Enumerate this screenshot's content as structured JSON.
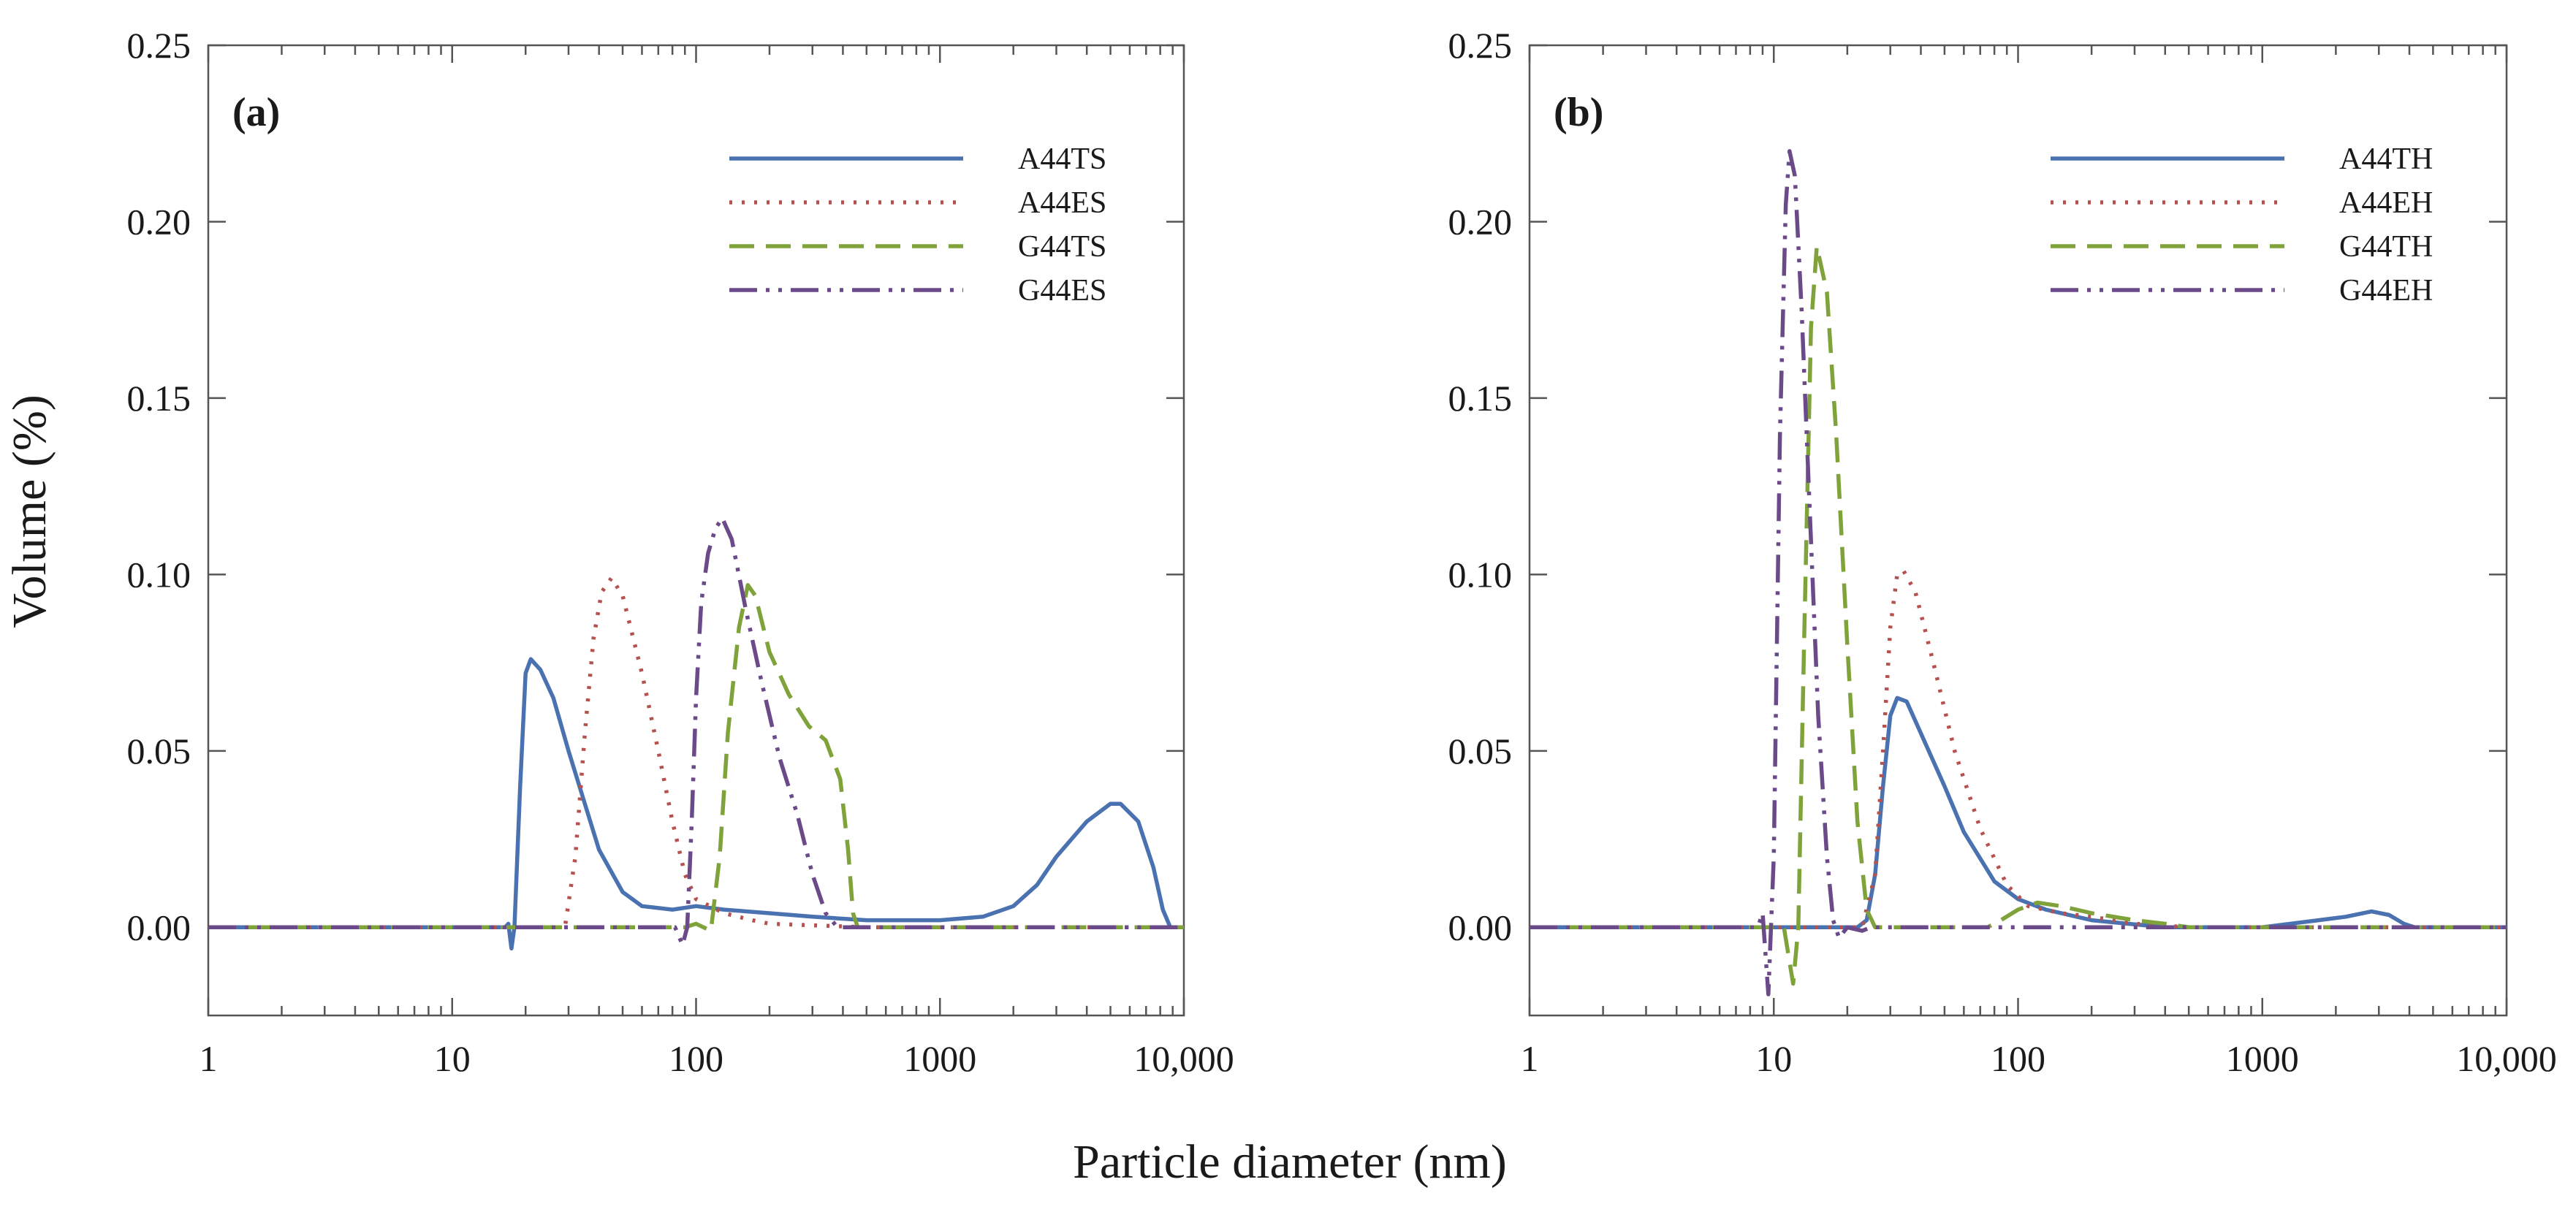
{
  "figure": {
    "xlabel": "Particle diameter (nm)",
    "ylabel": "Volume (%)"
  },
  "chart_data": [
    {
      "type": "line",
      "panel": "(a)",
      "xscale": "log",
      "xlim": [
        1,
        10000
      ],
      "ylim": [
        -0.025,
        0.25
      ],
      "x_ticks": [
        1,
        10,
        100,
        1000,
        10000
      ],
      "x_tick_labels": [
        "1",
        "10",
        "100",
        "1000",
        "10,000"
      ],
      "y_ticks": [
        0,
        0.05,
        0.1,
        0.15,
        0.2,
        0.25
      ],
      "y_tick_labels": [
        "0.00",
        "0.05",
        "0.10",
        "0.15",
        "0.20",
        "0.25"
      ],
      "legend_position": "top-right",
      "series": [
        {
          "name": "A44TS",
          "color": "#4a72b0",
          "dash": "solid",
          "points": [
            [
              1,
              0
            ],
            [
              16.5,
              0
            ],
            [
              17,
              0.001
            ],
            [
              17.5,
              -0.006
            ],
            [
              18,
              0
            ],
            [
              19,
              0.04
            ],
            [
              20,
              0.072
            ],
            [
              21,
              0.076
            ],
            [
              23,
              0.073
            ],
            [
              26,
              0.065
            ],
            [
              30,
              0.05
            ],
            [
              35,
              0.035
            ],
            [
              40,
              0.022
            ],
            [
              50,
              0.01
            ],
            [
              60,
              0.006
            ],
            [
              80,
              0.005
            ],
            [
              100,
              0.006
            ],
            [
              130,
              0.005
            ],
            [
              200,
              0.004
            ],
            [
              300,
              0.003
            ],
            [
              500,
              0.002
            ],
            [
              1000,
              0.002
            ],
            [
              1500,
              0.003
            ],
            [
              2000,
              0.006
            ],
            [
              2500,
              0.012
            ],
            [
              3000,
              0.02
            ],
            [
              4000,
              0.03
            ],
            [
              5000,
              0.035
            ],
            [
              5500,
              0.035
            ],
            [
              6500,
              0.03
            ],
            [
              7500,
              0.017
            ],
            [
              8200,
              0.005
            ],
            [
              8800,
              0
            ],
            [
              10000,
              0
            ]
          ]
        },
        {
          "name": "A44ES",
          "color": "#b5524f",
          "dash": "dot",
          "points": [
            [
              1,
              0
            ],
            [
              29,
              0
            ],
            [
              32,
              0.02
            ],
            [
              35,
              0.055
            ],
            [
              38,
              0.082
            ],
            [
              41,
              0.095
            ],
            [
              45,
              0.099
            ],
            [
              50,
              0.094
            ],
            [
              60,
              0.072
            ],
            [
              70,
              0.05
            ],
            [
              80,
              0.03
            ],
            [
              90,
              0.015
            ],
            [
              100,
              0.008
            ],
            [
              130,
              0.004
            ],
            [
              170,
              0.002
            ],
            [
              200,
              0.001
            ],
            [
              500,
              0
            ],
            [
              10000,
              0
            ]
          ]
        },
        {
          "name": "G44TS",
          "color": "#7fa33a",
          "dash": "dash",
          "points": [
            [
              1,
              0
            ],
            [
              90,
              0
            ],
            [
              100,
              0.001
            ],
            [
              115,
              -0.001
            ],
            [
              125,
              0.02
            ],
            [
              135,
              0.055
            ],
            [
              150,
              0.085
            ],
            [
              163,
              0.097
            ],
            [
              175,
              0.094
            ],
            [
              200,
              0.078
            ],
            [
              240,
              0.066
            ],
            [
              290,
              0.057
            ],
            [
              340,
              0.053
            ],
            [
              390,
              0.042
            ],
            [
              420,
              0.022
            ],
            [
              440,
              0.004
            ],
            [
              460,
              0
            ],
            [
              10000,
              0
            ]
          ]
        },
        {
          "name": "G44ES",
          "color": "#6b4a8a",
          "dash": "dashdotdot",
          "points": [
            [
              1,
              0
            ],
            [
              82,
              0
            ],
            [
              88,
              -0.005
            ],
            [
              92,
              0
            ],
            [
              96,
              0.03
            ],
            [
              100,
              0.065
            ],
            [
              105,
              0.092
            ],
            [
              112,
              0.106
            ],
            [
              120,
              0.113
            ],
            [
              128,
              0.116
            ],
            [
              140,
              0.11
            ],
            [
              160,
              0.09
            ],
            [
              185,
              0.07
            ],
            [
              220,
              0.048
            ],
            [
              260,
              0.032
            ],
            [
              300,
              0.015
            ],
            [
              340,
              0.004
            ],
            [
              380,
              0
            ],
            [
              10000,
              0
            ]
          ]
        }
      ]
    },
    {
      "type": "line",
      "panel": "(b)",
      "xscale": "log",
      "xlim": [
        1,
        10000
      ],
      "ylim": [
        -0.025,
        0.25
      ],
      "x_ticks": [
        1,
        10,
        100,
        1000,
        10000
      ],
      "x_tick_labels": [
        "1",
        "10",
        "100",
        "1000",
        "10,000"
      ],
      "y_ticks": [
        0,
        0.05,
        0.1,
        0.15,
        0.2,
        0.25
      ],
      "y_tick_labels": [
        "0.00",
        "0.05",
        "0.10",
        "0.15",
        "0.20",
        "0.25"
      ],
      "legend_position": "top-right",
      "series": [
        {
          "name": "A44TH",
          "color": "#4a72b0",
          "dash": "solid",
          "points": [
            [
              1,
              0
            ],
            [
              22,
              0
            ],
            [
              24,
              0.002
            ],
            [
              26,
              0.015
            ],
            [
              28,
              0.04
            ],
            [
              30,
              0.06
            ],
            [
              32,
              0.065
            ],
            [
              35,
              0.064
            ],
            [
              40,
              0.055
            ],
            [
              50,
              0.04
            ],
            [
              60,
              0.027
            ],
            [
              80,
              0.013
            ],
            [
              100,
              0.008
            ],
            [
              130,
              0.005
            ],
            [
              200,
              0.002
            ],
            [
              400,
              0
            ],
            [
              1000,
              0
            ],
            [
              1300,
              0.001
            ],
            [
              1700,
              0.002
            ],
            [
              2200,
              0.003
            ],
            [
              2800,
              0.0045
            ],
            [
              3300,
              0.0035
            ],
            [
              3800,
              0.001
            ],
            [
              4200,
              0
            ],
            [
              10000,
              0
            ]
          ]
        },
        {
          "name": "A44EH",
          "color": "#b5524f",
          "dash": "dot",
          "points": [
            [
              1,
              0
            ],
            [
              23,
              0
            ],
            [
              26,
              0.015
            ],
            [
              28,
              0.05
            ],
            [
              30,
              0.085
            ],
            [
              32,
              0.1
            ],
            [
              34,
              0.101
            ],
            [
              38,
              0.095
            ],
            [
              45,
              0.075
            ],
            [
              55,
              0.05
            ],
            [
              70,
              0.028
            ],
            [
              90,
              0.012
            ],
            [
              110,
              0.006
            ],
            [
              150,
              0.004
            ],
            [
              200,
              0.003
            ],
            [
              300,
              0.001
            ],
            [
              500,
              0
            ],
            [
              10000,
              0
            ]
          ]
        },
        {
          "name": "G44TH",
          "color": "#7fa33a",
          "dash": "dash",
          "points": [
            [
              1,
              0
            ],
            [
              11,
              0
            ],
            [
              12,
              -0.016
            ],
            [
              12.6,
              0
            ],
            [
              13.3,
              0.08
            ],
            [
              14.2,
              0.17
            ],
            [
              15,
              0.193
            ],
            [
              16.5,
              0.18
            ],
            [
              18,
              0.14
            ],
            [
              20,
              0.08
            ],
            [
              22,
              0.03
            ],
            [
              24,
              0.005
            ],
            [
              26,
              0
            ],
            [
              75,
              0
            ],
            [
              85,
              0.002
            ],
            [
              100,
              0.005
            ],
            [
              120,
              0.007
            ],
            [
              150,
              0.006
            ],
            [
              200,
              0.004
            ],
            [
              300,
              0.002
            ],
            [
              400,
              0.001
            ],
            [
              500,
              0
            ],
            [
              10000,
              0
            ]
          ]
        },
        {
          "name": "G44EH",
          "color": "#6b4a8a",
          "dash": "dashdotdot",
          "points": [
            [
              1,
              0
            ],
            [
              8.6,
              0
            ],
            [
              9,
              0.004
            ],
            [
              9.5,
              -0.019
            ],
            [
              10,
              0.02
            ],
            [
              10.6,
              0.14
            ],
            [
              11.2,
              0.205
            ],
            [
              11.6,
              0.22
            ],
            [
              12.2,
              0.213
            ],
            [
              13,
              0.175
            ],
            [
              14,
              0.12
            ],
            [
              15.2,
              0.06
            ],
            [
              16.5,
              0.02
            ],
            [
              17.5,
              0.002
            ],
            [
              18.5,
              -0.003
            ],
            [
              20,
              0
            ],
            [
              23,
              -0.001
            ],
            [
              25,
              0
            ],
            [
              10000,
              0
            ]
          ]
        }
      ]
    }
  ]
}
